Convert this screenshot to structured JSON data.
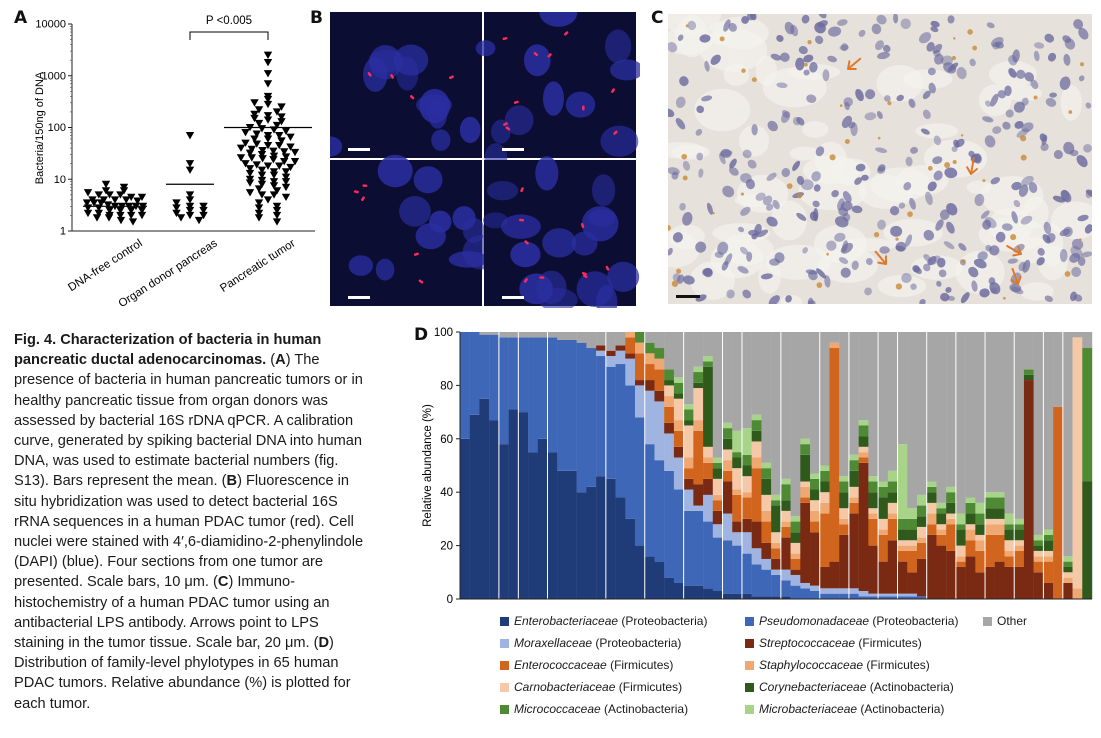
{
  "panels": {
    "a": "A",
    "b": "B",
    "c": "C",
    "d": "D"
  },
  "panel_a": {
    "ylabel": "Bacteria/150ng of DNA",
    "yticks": [
      "10000",
      "1000",
      "100",
      "10",
      "1"
    ],
    "groups": [
      "DNA-free control",
      "Organ donor pancreas",
      "Pancreatic tumor"
    ],
    "pvalue": "P <0.005",
    "means": [
      3,
      8,
      100
    ]
  },
  "panel_b": {
    "scale_bar_color": "#ffffff",
    "background": "#0b0d33",
    "nuclei_color": "#2a2ea0",
    "signal_color": "#ff2a55"
  },
  "panel_c": {
    "background": "#e6e1da",
    "nuclei_color": "#6b6a9e",
    "arrow_color": "#e0782a"
  },
  "caption": {
    "title": "Fig. 4. Characterization of bacteria in human pancreatic ductal adenocarcinomas.",
    "a_label": "A",
    "a_text": " The presence of bacteria in human pancreatic tumors or in healthy pancreatic tissue from organ donors was assessed by bacterial 16S rDNA qPCR. A calibration curve, generated by spiking bacterial DNA into human DNA, was used to estimate bacterial numbers (fig. S13). Bars represent the mean. (",
    "b_label": "B",
    "b_text": ") Fluorescence in situ hybridization was used to detect bacterial 16S rRNA sequences in a human PDAC tumor (red). Cell nuclei were stained with 4′,6-diamidino-2-phenylindole (DAPI) (blue). Four sections from one tumor are presented. Scale bars, 10 μm. (",
    "c_label": "C",
    "c_text": ") Immuno­histochemistry of a human PDAC tumor using an antibacterial LPS antibody. Arrows point to LPS staining in the tumor tissue. Scale bar, 20 μm. (",
    "d_label": "D",
    "d_text": ") Distribution of family-level phylotypes in 65 human PDAC tumors. Relative abundance (%) is plotted for each tumor."
  },
  "chart_data": [
    {
      "type": "scatter",
      "title": "",
      "ylabel": "Bacteria/150ng of DNA",
      "yscale": "log",
      "ylim": [
        1,
        10000
      ],
      "categories": [
        "DNA-free control",
        "Organ donor pancreas",
        "Pancreatic tumor"
      ],
      "means": [
        3,
        8,
        100
      ],
      "annotation": "P <0.005",
      "series": [
        {
          "group": "DNA-free control",
          "values": [
            8,
            7,
            6,
            6,
            5.5,
            5,
            5,
            5,
            4.5,
            4.5,
            4,
            4,
            4,
            4,
            3.8,
            3.5,
            3.5,
            3.5,
            3.2,
            3,
            3,
            3,
            3,
            3,
            2.8,
            2.8,
            2.5,
            2.5,
            2.5,
            2.5,
            2.2,
            2.2,
            2,
            2,
            2,
            2,
            1.8,
            1.8,
            1.6,
            1.5
          ]
        },
        {
          "group": "Organ donor pancreas",
          "values": [
            70,
            20,
            15,
            5,
            4,
            3.5,
            3,
            3,
            2.8,
            2.5,
            2.5,
            2.2,
            2,
            2,
            1.8,
            1.6
          ]
        },
        {
          "group": "Pancreatic tumor",
          "values": [
            2500,
            1800,
            1100,
            700,
            400,
            350,
            300,
            280,
            250,
            220,
            200,
            180,
            170,
            160,
            150,
            140,
            130,
            120,
            110,
            100,
            95,
            90,
            85,
            80,
            75,
            70,
            65,
            60,
            55,
            50,
            48,
            45,
            42,
            40,
            38,
            36,
            34,
            32,
            30,
            28,
            27,
            26,
            25,
            24,
            22,
            20,
            19,
            18,
            17,
            16,
            15,
            14,
            13,
            12,
            11,
            10,
            9.5,
            9,
            8.5,
            8,
            7.5,
            7,
            6.5,
            6,
            5.5,
            5,
            4.5,
            4,
            3.5,
            3,
            2.8,
            2.5,
            2.2,
            2,
            1.8,
            1.5,
            35,
            60,
            22,
            12,
            45,
            18,
            26,
            9,
            14,
            33,
            70,
            5
          ]
        }
      ]
    },
    {
      "type": "bar",
      "stacked": true,
      "title": "",
      "xlabel": "",
      "ylabel": "Relative abundance (%)",
      "ylim": [
        0,
        100
      ],
      "yticks": [
        0,
        20,
        40,
        60,
        80,
        100
      ],
      "legend_position": "bottom",
      "n_tumors": 65,
      "series": [
        {
          "name": "Enterobacteriaceae",
          "phylum": "(Proteobacteria)",
          "color": "#1f3b78",
          "values": [
            60,
            69,
            75,
            67,
            58,
            71,
            70,
            55,
            60,
            55,
            48,
            48,
            40,
            42,
            46,
            45,
            38,
            30,
            20,
            16,
            14,
            8,
            6,
            5,
            5,
            4,
            3,
            2,
            2,
            2,
            1,
            1,
            1,
            1,
            0,
            0,
            0,
            0,
            0,
            0,
            0,
            0,
            0,
            0,
            0,
            0,
            0,
            0,
            0,
            0,
            0,
            0,
            0,
            0,
            0,
            0,
            0,
            0,
            0,
            0,
            0,
            0,
            0,
            0,
            0
          ]
        },
        {
          "name": "Pseudomonadaceae",
          "phylum": "(Proteobacteria)",
          "color": "#3f67b8",
          "values": [
            40,
            31,
            24,
            32,
            40,
            27,
            28,
            43,
            38,
            43,
            49,
            49,
            56,
            52,
            45,
            42,
            50,
            50,
            48,
            42,
            38,
            40,
            35,
            28,
            28,
            25,
            20,
            20,
            18,
            15,
            12,
            10,
            8,
            6,
            5,
            4,
            3,
            2,
            2,
            2,
            2,
            1,
            1,
            1,
            1,
            1,
            1,
            1,
            0,
            0,
            0,
            0,
            0,
            0,
            0,
            0,
            0,
            0,
            0,
            0,
            0,
            0,
            0,
            0,
            0
          ]
        },
        {
          "name": "Moraxellaceae",
          "phylum": "(Proteobacteria)",
          "color": "#9fb4e0",
          "values": [
            0,
            0,
            0,
            0,
            0,
            0,
            0,
            0,
            0,
            0,
            0,
            0,
            0,
            0,
            2,
            4,
            5,
            10,
            12,
            20,
            22,
            14,
            12,
            8,
            2,
            10,
            5,
            10,
            5,
            8,
            6,
            4,
            2,
            4,
            4,
            2,
            2,
            2,
            2,
            2,
            2,
            2,
            1,
            1,
            1,
            1,
            1,
            0,
            0,
            0,
            0,
            0,
            0,
            0,
            0,
            0,
            0,
            0,
            0,
            0,
            0,
            0,
            0,
            0,
            0
          ]
        },
        {
          "name": "Streptococcaceae",
          "phylum": "(Firmicutes)",
          "color": "#7a2a12",
          "values": [
            0,
            0,
            0,
            0,
            0,
            0,
            0,
            0,
            0,
            0,
            0,
            0,
            0,
            0,
            2,
            2,
            2,
            2,
            2,
            4,
            4,
            4,
            4,
            4,
            8,
            6,
            5,
            12,
            4,
            5,
            10,
            6,
            4,
            12,
            2,
            30,
            20,
            8,
            10,
            20,
            28,
            48,
            18,
            12,
            20,
            12,
            8,
            14,
            24,
            20,
            18,
            12,
            16,
            10,
            12,
            14,
            12,
            12,
            82,
            10,
            6,
            0,
            6,
            0,
            0
          ]
        },
        {
          "name": "Enterococcaceae",
          "phylum": "(Firmicutes)",
          "color": "#d2651e",
          "values": [
            0,
            0,
            0,
            0,
            0,
            0,
            0,
            0,
            0,
            0,
            0,
            0,
            0,
            0,
            0,
            0,
            0,
            6,
            10,
            6,
            8,
            6,
            6,
            4,
            20,
            6,
            4,
            4,
            10,
            8,
            20,
            8,
            4,
            4,
            4,
            2,
            4,
            20,
            80,
            4,
            4,
            2,
            10,
            10,
            8,
            4,
            8,
            6,
            4,
            4,
            10,
            2,
            6,
            8,
            12,
            10,
            4,
            6,
            0,
            4,
            8,
            72,
            0,
            0,
            0
          ]
        },
        {
          "name": "Staphylococcaceae",
          "phylum": "(Firmicutes)",
          "color": "#efa872",
          "values": [
            0,
            0,
            0,
            0,
            0,
            0,
            0,
            0,
            0,
            0,
            0,
            0,
            0,
            0,
            0,
            0,
            0,
            2,
            4,
            4,
            4,
            4,
            4,
            4,
            4,
            2,
            2,
            4,
            2,
            2,
            4,
            4,
            2,
            2,
            2,
            4,
            4,
            4,
            2,
            2,
            2,
            2,
            2,
            2,
            2,
            2,
            2,
            2,
            4,
            2,
            2,
            2,
            4,
            4,
            4,
            4,
            2,
            2,
            0,
            2,
            2,
            0,
            2,
            4,
            0
          ]
        },
        {
          "name": "Carnobacteriaceae",
          "phylum": "(Firmicutes)",
          "color": "#f5c8a8",
          "values": [
            0,
            0,
            0,
            0,
            0,
            0,
            0,
            0,
            0,
            0,
            0,
            0,
            0,
            0,
            0,
            0,
            0,
            0,
            0,
            0,
            0,
            4,
            8,
            12,
            12,
            4,
            6,
            4,
            8,
            6,
            6,
            6,
            4,
            4,
            4,
            2,
            4,
            4,
            0,
            4,
            4,
            2,
            2,
            4,
            4,
            2,
            2,
            4,
            4,
            2,
            2,
            4,
            2,
            2,
            2,
            2,
            4,
            2,
            0,
            2,
            2,
            0,
            2,
            94,
            0
          ]
        },
        {
          "name": "Corynebacteriaceae",
          "phylum": "(Actinobacteria)",
          "color": "#2f5a1c",
          "values": [
            0,
            0,
            0,
            0,
            0,
            0,
            0,
            0,
            0,
            0,
            0,
            0,
            0,
            0,
            0,
            0,
            0,
            0,
            0,
            0,
            0,
            2,
            2,
            2,
            2,
            30,
            4,
            4,
            4,
            4,
            4,
            6,
            10,
            4,
            4,
            10,
            4,
            4,
            0,
            6,
            6,
            4,
            6,
            8,
            4,
            4,
            4,
            4,
            4,
            4,
            4,
            6,
            4,
            4,
            4,
            4,
            4,
            4,
            2,
            2,
            4,
            0,
            2,
            0,
            44
          ]
        },
        {
          "name": "Micrococcaceae",
          "phylum": "(Actinobacteria)",
          "color": "#4e8a34",
          "values": [
            0,
            0,
            0,
            0,
            0,
            0,
            0,
            0,
            0,
            0,
            0,
            0,
            0,
            0,
            0,
            0,
            0,
            0,
            4,
            4,
            4,
            4,
            4,
            4,
            4,
            2,
            2,
            4,
            2,
            4,
            4,
            4,
            2,
            6,
            4,
            4,
            4,
            4,
            0,
            4,
            4,
            4,
            4,
            4,
            4,
            4,
            4,
            4,
            2,
            2,
            4,
            2,
            4,
            4,
            4,
            4,
            2,
            2,
            2,
            2,
            2,
            0,
            2,
            0,
            50
          ]
        },
        {
          "name": "Microbacteriaceae",
          "phylum": "(Actinobacteria)",
          "color": "#a8d48a",
          "values": [
            0,
            0,
            0,
            0,
            0,
            0,
            0,
            0,
            0,
            0,
            0,
            0,
            0,
            0,
            0,
            0,
            0,
            0,
            0,
            0,
            0,
            0,
            2,
            2,
            2,
            2,
            2,
            2,
            8,
            10,
            2,
            2,
            2,
            2,
            2,
            2,
            2,
            2,
            0,
            2,
            2,
            2,
            2,
            2,
            4,
            28,
            4,
            4,
            2,
            2,
            2,
            4,
            2,
            4,
            2,
            2,
            4,
            2,
            0,
            2,
            2,
            0,
            2,
            0,
            0
          ]
        },
        {
          "name": "Other",
          "phylum": "",
          "color": "#a6a6a6",
          "values": "remainder"
        }
      ]
    }
  ]
}
